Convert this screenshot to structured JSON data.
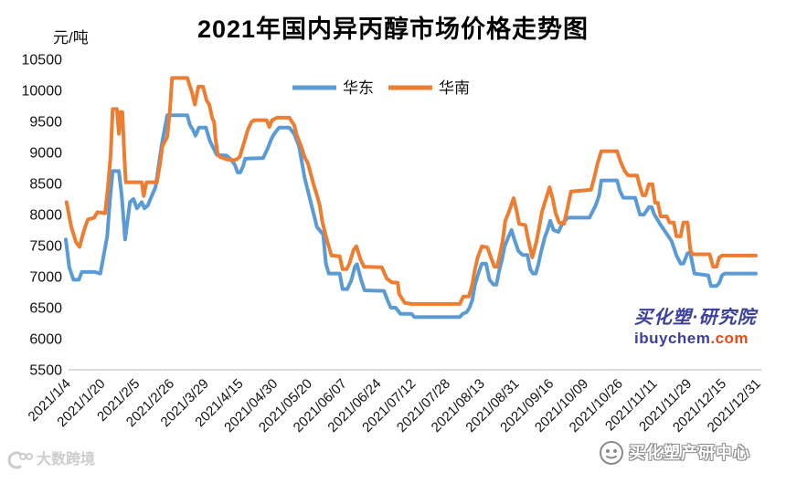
{
  "title": "2021年国内异丙醇市场价格走势图",
  "y_unit": "元/吨",
  "watermark": {
    "line1": "买化塑·研究院",
    "brand": "ibuychem",
    "tld": ".com"
  },
  "footer_logos": {
    "left": "大数跨境",
    "right": "买化塑产研中心"
  },
  "colors": {
    "huadong": "#5B9BD5",
    "huanan": "#ED7D31",
    "axis": "#cfcfcf",
    "wm_blue": "#3b3f9e",
    "wm_red": "#e84a17",
    "logo_gray": "#cccccc"
  },
  "chart_data": {
    "type": "line",
    "title": "2021年国内异丙醇市场价格走势图",
    "ylabel": "元/吨",
    "xlabel": "",
    "ylim": [
      5500,
      10500
    ],
    "ytick_step": 500,
    "grid": false,
    "legend_position": "top-center",
    "x_tick_labels": [
      "2021/1/4",
      "2021/1/20",
      "2021/2/5",
      "2021/2/26",
      "2021/3/29",
      "2021/4/15",
      "2021/04/30",
      "2021/05/20",
      "2021/06/07",
      "2021/06/24",
      "2021/07/12",
      "2021/07/28",
      "2021/08/13",
      "2021/08/31",
      "2021/09/16",
      "2021/10/09",
      "2021/10/26",
      "2021/11/11",
      "2021/11/29",
      "2021/12/15",
      "2021/12/31"
    ],
    "series": [
      {
        "name": "华东",
        "color": "#5B9BD5",
        "points": [
          [
            0.0,
            7600
          ],
          [
            0.005,
            7150
          ],
          [
            0.011,
            6950
          ],
          [
            0.019,
            6950
          ],
          [
            0.023,
            7075
          ],
          [
            0.042,
            7075
          ],
          [
            0.05,
            7050
          ],
          [
            0.06,
            7650
          ],
          [
            0.064,
            8235
          ],
          [
            0.068,
            8700
          ],
          [
            0.077,
            8700
          ],
          [
            0.081,
            8300
          ],
          [
            0.086,
            7600
          ],
          [
            0.093,
            8200
          ],
          [
            0.098,
            8250
          ],
          [
            0.103,
            8100
          ],
          [
            0.11,
            8200
          ],
          [
            0.114,
            8100
          ],
          [
            0.119,
            8150
          ],
          [
            0.126,
            8340
          ],
          [
            0.13,
            8440
          ],
          [
            0.139,
            9120
          ],
          [
            0.147,
            9600
          ],
          [
            0.176,
            9600
          ],
          [
            0.18,
            9440
          ],
          [
            0.184,
            9370
          ],
          [
            0.188,
            9270
          ],
          [
            0.193,
            9400
          ],
          [
            0.203,
            9400
          ],
          [
            0.209,
            9180
          ],
          [
            0.219,
            8960
          ],
          [
            0.233,
            8950
          ],
          [
            0.24,
            8880
          ],
          [
            0.245,
            8800
          ],
          [
            0.249,
            8680
          ],
          [
            0.253,
            8680
          ],
          [
            0.257,
            8780
          ],
          [
            0.26,
            8900
          ],
          [
            0.286,
            8910
          ],
          [
            0.293,
            9075
          ],
          [
            0.298,
            9220
          ],
          [
            0.302,
            9300
          ],
          [
            0.309,
            9400
          ],
          [
            0.324,
            9400
          ],
          [
            0.331,
            9300
          ],
          [
            0.338,
            9100
          ],
          [
            0.346,
            8600
          ],
          [
            0.355,
            8200
          ],
          [
            0.364,
            7800
          ],
          [
            0.373,
            7680
          ],
          [
            0.377,
            7210
          ],
          [
            0.381,
            7050
          ],
          [
            0.397,
            7050
          ],
          [
            0.401,
            6800
          ],
          [
            0.408,
            6800
          ],
          [
            0.414,
            6950
          ],
          [
            0.419,
            7160
          ],
          [
            0.422,
            7200
          ],
          [
            0.428,
            6950
          ],
          [
            0.433,
            6780
          ],
          [
            0.461,
            6770
          ],
          [
            0.467,
            6600
          ],
          [
            0.471,
            6500
          ],
          [
            0.478,
            6500
          ],
          [
            0.485,
            6400
          ],
          [
            0.501,
            6400
          ],
          [
            0.505,
            6350
          ],
          [
            0.571,
            6350
          ],
          [
            0.575,
            6400
          ],
          [
            0.581,
            6430
          ],
          [
            0.585,
            6500
          ],
          [
            0.589,
            6620
          ],
          [
            0.593,
            6870
          ],
          [
            0.599,
            7090
          ],
          [
            0.603,
            7210
          ],
          [
            0.609,
            7210
          ],
          [
            0.614,
            6950
          ],
          [
            0.62,
            6870
          ],
          [
            0.624,
            6870
          ],
          [
            0.628,
            7090
          ],
          [
            0.632,
            7270
          ],
          [
            0.636,
            7490
          ],
          [
            0.641,
            7630
          ],
          [
            0.646,
            7750
          ],
          [
            0.65,
            7600
          ],
          [
            0.656,
            7410
          ],
          [
            0.662,
            7350
          ],
          [
            0.669,
            7350
          ],
          [
            0.673,
            7120
          ],
          [
            0.677,
            7050
          ],
          [
            0.681,
            7050
          ],
          [
            0.685,
            7210
          ],
          [
            0.689,
            7410
          ],
          [
            0.694,
            7630
          ],
          [
            0.698,
            7750
          ],
          [
            0.702,
            7900
          ],
          [
            0.707,
            7750
          ],
          [
            0.714,
            7720
          ],
          [
            0.72,
            7870
          ],
          [
            0.728,
            7950
          ],
          [
            0.759,
            7950
          ],
          [
            0.768,
            8150
          ],
          [
            0.773,
            8310
          ],
          [
            0.776,
            8550
          ],
          [
            0.799,
            8550
          ],
          [
            0.803,
            8380
          ],
          [
            0.808,
            8270
          ],
          [
            0.825,
            8270
          ],
          [
            0.832,
            8000
          ],
          [
            0.838,
            8000
          ],
          [
            0.845,
            8120
          ],
          [
            0.849,
            8120
          ],
          [
            0.853,
            8000
          ],
          [
            0.861,
            7850
          ],
          [
            0.869,
            7720
          ],
          [
            0.878,
            7570
          ],
          [
            0.885,
            7340
          ],
          [
            0.891,
            7210
          ],
          [
            0.895,
            7210
          ],
          [
            0.901,
            7380
          ],
          [
            0.905,
            7380
          ],
          [
            0.911,
            7050
          ],
          [
            0.931,
            7020
          ],
          [
            0.935,
            6850
          ],
          [
            0.943,
            6850
          ],
          [
            0.947,
            6900
          ],
          [
            0.951,
            7020
          ],
          [
            0.955,
            7050
          ],
          [
            1.0,
            7050
          ]
        ]
      },
      {
        "name": "华南",
        "color": "#ED7D31",
        "points": [
          [
            0.001,
            8200
          ],
          [
            0.008,
            7800
          ],
          [
            0.015,
            7550
          ],
          [
            0.02,
            7480
          ],
          [
            0.024,
            7650
          ],
          [
            0.028,
            7800
          ],
          [
            0.032,
            7920
          ],
          [
            0.041,
            7950
          ],
          [
            0.046,
            8040
          ],
          [
            0.057,
            8020
          ],
          [
            0.061,
            8440
          ],
          [
            0.065,
            8970
          ],
          [
            0.068,
            9700
          ],
          [
            0.074,
            9700
          ],
          [
            0.077,
            9300
          ],
          [
            0.079,
            9650
          ],
          [
            0.082,
            9650
          ],
          [
            0.085,
            8900
          ],
          [
            0.087,
            8520
          ],
          [
            0.11,
            8520
          ],
          [
            0.113,
            8300
          ],
          [
            0.117,
            8520
          ],
          [
            0.132,
            8520
          ],
          [
            0.136,
            8780
          ],
          [
            0.14,
            9100
          ],
          [
            0.147,
            9250
          ],
          [
            0.151,
            9700
          ],
          [
            0.154,
            10200
          ],
          [
            0.176,
            10200
          ],
          [
            0.183,
            9960
          ],
          [
            0.187,
            9770
          ],
          [
            0.192,
            10060
          ],
          [
            0.199,
            10060
          ],
          [
            0.204,
            9840
          ],
          [
            0.208,
            9770
          ],
          [
            0.212,
            9560
          ],
          [
            0.215,
            9490
          ],
          [
            0.217,
            9220
          ],
          [
            0.22,
            8980
          ],
          [
            0.223,
            8930
          ],
          [
            0.233,
            8890
          ],
          [
            0.24,
            8880
          ],
          [
            0.246,
            8880
          ],
          [
            0.252,
            8930
          ],
          [
            0.256,
            9075
          ],
          [
            0.26,
            9220
          ],
          [
            0.264,
            9370
          ],
          [
            0.269,
            9490
          ],
          [
            0.273,
            9520
          ],
          [
            0.291,
            9520
          ],
          [
            0.295,
            9410
          ],
          [
            0.299,
            9520
          ],
          [
            0.306,
            9560
          ],
          [
            0.324,
            9560
          ],
          [
            0.331,
            9440
          ],
          [
            0.335,
            9270
          ],
          [
            0.342,
            9075
          ],
          [
            0.346,
            8930
          ],
          [
            0.351,
            8820
          ],
          [
            0.359,
            8490
          ],
          [
            0.364,
            8310
          ],
          [
            0.368,
            8150
          ],
          [
            0.372,
            7870
          ],
          [
            0.377,
            7650
          ],
          [
            0.381,
            7490
          ],
          [
            0.385,
            7340
          ],
          [
            0.397,
            7330
          ],
          [
            0.401,
            7120
          ],
          [
            0.407,
            7120
          ],
          [
            0.411,
            7210
          ],
          [
            0.417,
            7430
          ],
          [
            0.421,
            7490
          ],
          [
            0.427,
            7280
          ],
          [
            0.432,
            7160
          ],
          [
            0.458,
            7150
          ],
          [
            0.465,
            6970
          ],
          [
            0.472,
            6910
          ],
          [
            0.481,
            6900
          ],
          [
            0.483,
            6720
          ],
          [
            0.491,
            6580
          ],
          [
            0.501,
            6560
          ],
          [
            0.571,
            6560
          ],
          [
            0.576,
            6680
          ],
          [
            0.584,
            6680
          ],
          [
            0.589,
            6870
          ],
          [
            0.593,
            7120
          ],
          [
            0.597,
            7310
          ],
          [
            0.603,
            7490
          ],
          [
            0.611,
            7470
          ],
          [
            0.616,
            7310
          ],
          [
            0.621,
            7160
          ],
          [
            0.625,
            7160
          ],
          [
            0.629,
            7350
          ],
          [
            0.633,
            7570
          ],
          [
            0.637,
            7900
          ],
          [
            0.642,
            8040
          ],
          [
            0.649,
            8265
          ],
          [
            0.653,
            8080
          ],
          [
            0.657,
            7850
          ],
          [
            0.666,
            7830
          ],
          [
            0.67,
            7600
          ],
          [
            0.676,
            7310
          ],
          [
            0.682,
            7560
          ],
          [
            0.686,
            7790
          ],
          [
            0.69,
            8040
          ],
          [
            0.695,
            8220
          ],
          [
            0.701,
            8440
          ],
          [
            0.706,
            8240
          ],
          [
            0.71,
            8020
          ],
          [
            0.715,
            7870
          ],
          [
            0.722,
            7850
          ],
          [
            0.727,
            8100
          ],
          [
            0.732,
            8370
          ],
          [
            0.761,
            8400
          ],
          [
            0.766,
            8600
          ],
          [
            0.77,
            8800
          ],
          [
            0.776,
            9020
          ],
          [
            0.799,
            9020
          ],
          [
            0.804,
            8850
          ],
          [
            0.81,
            8700
          ],
          [
            0.815,
            8630
          ],
          [
            0.828,
            8630
          ],
          [
            0.832,
            8450
          ],
          [
            0.836,
            8310
          ],
          [
            0.84,
            8310
          ],
          [
            0.845,
            8490
          ],
          [
            0.85,
            8490
          ],
          [
            0.854,
            8190
          ],
          [
            0.858,
            8190
          ],
          [
            0.862,
            7970
          ],
          [
            0.871,
            7970
          ],
          [
            0.875,
            7870
          ],
          [
            0.881,
            7870
          ],
          [
            0.885,
            7650
          ],
          [
            0.891,
            7650
          ],
          [
            0.895,
            7870
          ],
          [
            0.901,
            7870
          ],
          [
            0.905,
            7430
          ],
          [
            0.908,
            7360
          ],
          [
            0.933,
            7360
          ],
          [
            0.938,
            7160
          ],
          [
            0.943,
            7160
          ],
          [
            0.947,
            7310
          ],
          [
            0.951,
            7340
          ],
          [
            1.0,
            7340
          ]
        ]
      }
    ]
  }
}
